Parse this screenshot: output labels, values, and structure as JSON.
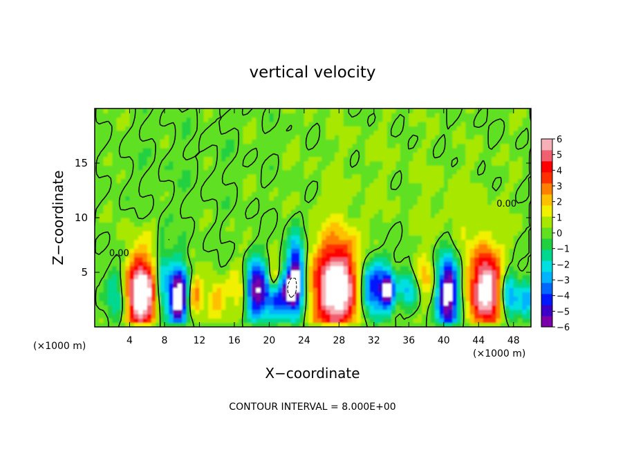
{
  "chart_data": {
    "type": "heatmap",
    "title": "vertical velocity",
    "xlabel": "X−coordinate",
    "ylabel": "Z−coordinate",
    "x_unit_left": "(×1000 m)",
    "x_unit_right": "(×1000 m)",
    "footer": "CONTOUR INTERVAL = 8.000E+00",
    "xlim": [
      0,
      50
    ],
    "ylim": [
      0,
      20
    ],
    "x_ticks": [
      {
        "value": 4,
        "label": "4"
      },
      {
        "value": 8,
        "label": "8"
      },
      {
        "value": 12,
        "label": "12"
      },
      {
        "value": 16,
        "label": "16"
      },
      {
        "value": 20,
        "label": "20"
      },
      {
        "value": 24,
        "label": "24"
      },
      {
        "value": 28,
        "label": "28"
      },
      {
        "value": 32,
        "label": "32"
      },
      {
        "value": 36,
        "label": "36"
      },
      {
        "value": 40,
        "label": "40"
      },
      {
        "value": 44,
        "label": "44"
      },
      {
        "value": 48,
        "label": "48"
      }
    ],
    "y_ticks": [
      {
        "value": 5,
        "label": "5"
      },
      {
        "value": 10,
        "label": "10"
      },
      {
        "value": 15,
        "label": "15"
      }
    ],
    "colorbar": {
      "min": -6,
      "max": 6,
      "tick_labels": [
        "6",
        "5",
        "4",
        "3",
        "2",
        "1",
        "0",
        "−1",
        "−2",
        "−3",
        "−4",
        "−5",
        "−6"
      ],
      "colors": [
        "#7a00a8",
        "#3a00c8",
        "#0018ff",
        "#0068ff",
        "#00b4ff",
        "#00e0e0",
        "#00d890",
        "#20d040",
        "#60e020",
        "#a8e800",
        "#f0f000",
        "#ffc000",
        "#ff8000",
        "#ff3000",
        "#ff0000",
        "#f06070",
        "#f8b0b8"
      ]
    },
    "contour_labels": [
      {
        "x": 2.8,
        "z": 6.5,
        "text": "0.00"
      },
      {
        "x": 47.2,
        "z": 11.0,
        "text": "0.00"
      }
    ],
    "features": [
      {
        "x": 5.3,
        "z": 3.0,
        "sx": 1.3,
        "sz": 2.6,
        "amp": 7.5
      },
      {
        "x": 9.6,
        "z": 2.8,
        "sx": 0.8,
        "sz": 2.0,
        "amp": -7.5
      },
      {
        "x": 2.5,
        "z": 3.0,
        "sx": 0.9,
        "sz": 2.0,
        "amp": -2.5
      },
      {
        "x": 7.6,
        "z": 4.0,
        "sx": 0.6,
        "sz": 2.5,
        "amp": -3.0
      },
      {
        "x": 11.5,
        "z": 3.0,
        "sx": 0.6,
        "sz": 1.2,
        "amp": 3.0
      },
      {
        "x": 14.0,
        "z": 2.5,
        "sx": 0.8,
        "sz": 1.2,
        "amp": 2.5
      },
      {
        "x": 16.5,
        "z": 3.5,
        "sx": 0.7,
        "sz": 1.5,
        "amp": 1.8
      },
      {
        "x": 18.5,
        "z": 3.5,
        "sx": 0.9,
        "sz": 1.8,
        "amp": -6.0
      },
      {
        "x": 21.0,
        "z": 2.8,
        "sx": 1.0,
        "sz": 1.5,
        "amp": -5.0
      },
      {
        "x": 23.0,
        "z": 4.5,
        "sx": 0.7,
        "sz": 2.5,
        "amp": -7.0
      },
      {
        "x": 20.5,
        "z": 4.5,
        "sx": 0.5,
        "sz": 1.0,
        "amp": 4.0
      },
      {
        "x": 22.5,
        "z": 3.5,
        "sx": 0.4,
        "sz": 0.7,
        "amp": -5.0
      },
      {
        "x": 27.8,
        "z": 3.6,
        "sx": 2.0,
        "sz": 3.0,
        "amp": 7.5
      },
      {
        "x": 31.8,
        "z": 3.5,
        "sx": 1.2,
        "sz": 2.0,
        "amp": -5.5
      },
      {
        "x": 33.6,
        "z": 3.4,
        "sx": 0.5,
        "sz": 1.2,
        "amp": -5.5
      },
      {
        "x": 36.0,
        "z": 3.5,
        "sx": 0.8,
        "sz": 1.2,
        "amp": -3.0
      },
      {
        "x": 38.0,
        "z": 4.5,
        "sx": 0.8,
        "sz": 1.5,
        "amp": 2.0
      },
      {
        "x": 40.5,
        "z": 3.0,
        "sx": 0.9,
        "sz": 2.5,
        "amp": -7.0
      },
      {
        "x": 44.8,
        "z": 3.5,
        "sx": 1.3,
        "sz": 2.5,
        "amp": 7.0
      },
      {
        "x": 47.5,
        "z": 3.0,
        "sx": 0.7,
        "sz": 1.5,
        "amp": -4.0
      },
      {
        "x": 49.5,
        "z": 2.5,
        "sx": 0.6,
        "sz": 1.2,
        "amp": -3.0
      },
      {
        "x": 42.0,
        "z": 10.0,
        "sx": 3.0,
        "sz": 3.0,
        "amp": 0.6
      },
      {
        "x": 10.0,
        "z": 15.0,
        "sx": 6.0,
        "sz": 4.0,
        "amp": -0.25
      },
      {
        "x": 30.0,
        "z": 14.0,
        "sx": 6.0,
        "sz": 4.0,
        "amp": 0.25
      }
    ]
  }
}
